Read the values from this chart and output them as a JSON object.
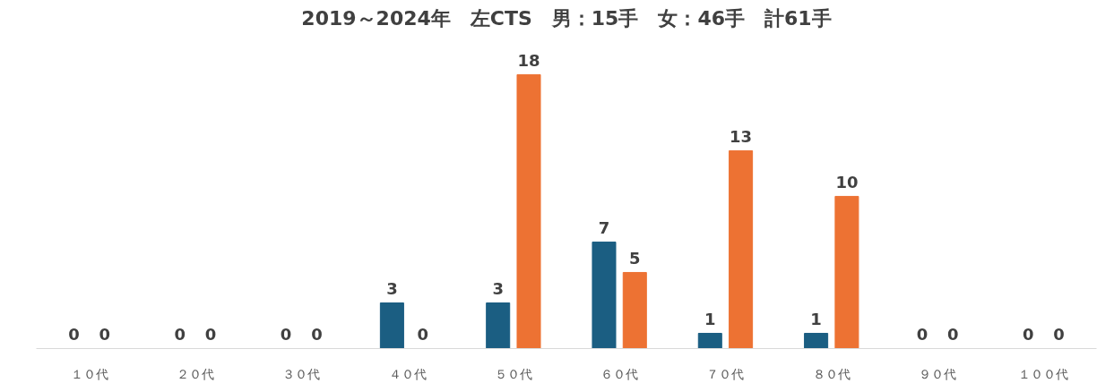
{
  "chart_data": {
    "type": "bar",
    "title": "2019～2024年　左CTS　男：15手　女：46手　計61手",
    "categories": [
      "１０代",
      "２０代",
      "３０代",
      "４０代",
      "５０代",
      "６０代",
      "７０代",
      "８０代",
      "９０代",
      "１００代"
    ],
    "series": [
      {
        "color": "#1b5e82",
        "values": [
          0,
          0,
          0,
          3,
          3,
          7,
          1,
          1,
          0,
          0
        ]
      },
      {
        "color": "#ed7233",
        "values": [
          0,
          0,
          0,
          0,
          18,
          5,
          13,
          10,
          0,
          0
        ]
      }
    ],
    "data_labels": true,
    "grid": false
  }
}
